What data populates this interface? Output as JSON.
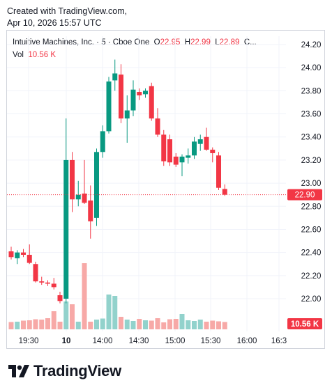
{
  "header": {
    "created_with": "Created with TradingView.com,",
    "timestamp": "Apr 10, 2026 15:57 UTC"
  },
  "legend": {
    "symbol": "Intuitive Machines, Inc. · 5 · Cboe One",
    "o_label": "O",
    "o_value": "22.95",
    "h_label": "H",
    "h_value": "22.99",
    "l_label": "L",
    "l_value": "22.89",
    "c_label": "C...",
    "vol_label": "Vol",
    "vol_value": "10.56 K"
  },
  "brand": {
    "name": "TradingView"
  },
  "colors": {
    "up": "#089981",
    "down": "#f23645",
    "vol_up": "#92d2cc",
    "vol_down": "#f7a9a7",
    "grid": "#f0f3fa"
  },
  "chart_data": {
    "type": "candlestick",
    "title": "Intuitive Machines, Inc. · 5 · Cboe One",
    "ylim": [
      21.8,
      24.2
    ],
    "y_ticks": [
      "24.20",
      "24.00",
      "23.80",
      "23.60",
      "23.40",
      "23.20",
      "23.00",
      "22.80",
      "22.60",
      "22.40",
      "22.20",
      "22.00"
    ],
    "x_ticks": [
      "19:30",
      "10",
      "14:00",
      "14:30",
      "15:00",
      "15:30",
      "16:00",
      "16:3"
    ],
    "last_price_label": "22.90",
    "last_price": 22.9,
    "volume_label": "10.56 K",
    "candles": [
      {
        "o": 22.41,
        "h": 22.45,
        "l": 22.34,
        "c": 22.36
      },
      {
        "o": 22.35,
        "h": 22.42,
        "l": 22.3,
        "c": 22.4
      },
      {
        "o": 22.4,
        "h": 22.43,
        "l": 22.36,
        "c": 22.38
      },
      {
        "o": 22.38,
        "h": 22.47,
        "l": 22.3,
        "c": 22.31
      },
      {
        "o": 22.3,
        "h": 22.32,
        "l": 22.14,
        "c": 22.15
      },
      {
        "o": 22.15,
        "h": 22.19,
        "l": 22.12,
        "c": 22.14
      },
      {
        "o": 22.14,
        "h": 22.16,
        "l": 22.11,
        "c": 22.13
      },
      {
        "o": 22.13,
        "h": 22.18,
        "l": 22.08,
        "c": 22.1
      },
      {
        "o": 22.03,
        "h": 22.06,
        "l": 21.96,
        "c": 21.98
      },
      {
        "o": 22.0,
        "h": 23.56,
        "l": 21.96,
        "c": 23.2
      },
      {
        "o": 23.2,
        "h": 23.27,
        "l": 22.75,
        "c": 22.86
      },
      {
        "o": 22.86,
        "h": 23.02,
        "l": 22.8,
        "c": 22.9
      },
      {
        "o": 22.91,
        "h": 23.2,
        "l": 22.82,
        "c": 22.83
      },
      {
        "o": 22.85,
        "h": 22.98,
        "l": 22.52,
        "c": 22.67
      },
      {
        "o": 22.7,
        "h": 23.3,
        "l": 22.63,
        "c": 23.27
      },
      {
        "o": 23.27,
        "h": 23.5,
        "l": 23.22,
        "c": 23.45
      },
      {
        "o": 23.45,
        "h": 23.92,
        "l": 23.43,
        "c": 23.88
      },
      {
        "o": 23.89,
        "h": 24.07,
        "l": 23.8,
        "c": 23.95
      },
      {
        "o": 23.94,
        "h": 24.03,
        "l": 23.52,
        "c": 23.56
      },
      {
        "o": 23.56,
        "h": 23.76,
        "l": 23.35,
        "c": 23.63
      },
      {
        "o": 23.63,
        "h": 23.89,
        "l": 23.58,
        "c": 23.81
      },
      {
        "o": 23.79,
        "h": 23.82,
        "l": 23.72,
        "c": 23.76
      },
      {
        "o": 23.77,
        "h": 23.82,
        "l": 23.74,
        "c": 23.8
      },
      {
        "o": 23.84,
        "h": 23.87,
        "l": 23.54,
        "c": 23.56
      },
      {
        "o": 23.56,
        "h": 23.65,
        "l": 23.4,
        "c": 23.42
      },
      {
        "o": 23.42,
        "h": 23.46,
        "l": 23.15,
        "c": 23.19
      },
      {
        "o": 23.38,
        "h": 23.42,
        "l": 23.15,
        "c": 23.18
      },
      {
        "o": 23.23,
        "h": 23.26,
        "l": 23.14,
        "c": 23.16
      },
      {
        "o": 23.18,
        "h": 23.25,
        "l": 23.06,
        "c": 23.23
      },
      {
        "o": 23.22,
        "h": 23.3,
        "l": 23.17,
        "c": 23.24
      },
      {
        "o": 23.24,
        "h": 23.4,
        "l": 23.21,
        "c": 23.36
      },
      {
        "o": 23.34,
        "h": 23.42,
        "l": 23.28,
        "c": 23.38
      },
      {
        "o": 23.4,
        "h": 23.48,
        "l": 23.28,
        "c": 23.29
      },
      {
        "o": 23.29,
        "h": 23.31,
        "l": 23.18,
        "c": 23.26
      },
      {
        "o": 23.24,
        "h": 23.27,
        "l": 22.94,
        "c": 22.96
      },
      {
        "o": 22.95,
        "h": 22.99,
        "l": 22.89,
        "c": 22.9
      }
    ],
    "volume": [
      10.5,
      11.0,
      12.5,
      13.0,
      14.5,
      14.0,
      16.0,
      26.0,
      11.0,
      40.0,
      36.0,
      11.0,
      95.0,
      11.0,
      14.0,
      15.5,
      50.0,
      48.0,
      18.0,
      14.0,
      12.0,
      15.0,
      13.0,
      12.5,
      16.0,
      10.0,
      14.5,
      15.0,
      22.0,
      13.0,
      12.0,
      14.0,
      11.0,
      12.5,
      11.5,
      10.56
    ]
  }
}
